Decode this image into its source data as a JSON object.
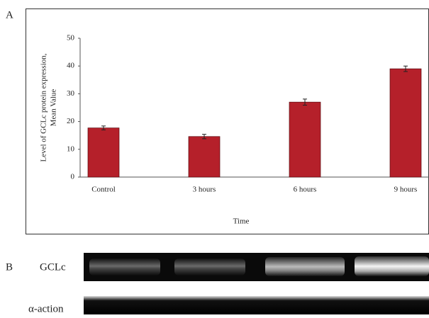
{
  "chart_data": {
    "type": "bar",
    "panel_label": "A",
    "ylabel": [
      "Level of GCLc protein expression,",
      "Mean Value"
    ],
    "xlabel": "Time",
    "categories": [
      "Control",
      "3 hours",
      "6 hours",
      "9 hours"
    ],
    "values": [
      17.7,
      14.6,
      27,
      39
    ],
    "errors": [
      0.7,
      0.8,
      1.1,
      1.0
    ],
    "color": "#b5202a",
    "ylim": [
      0,
      50
    ],
    "yticks": [
      0,
      10,
      20,
      30,
      40,
      50
    ]
  },
  "panel_b": {
    "label": "B",
    "rows": [
      "GCLc",
      "α-action"
    ]
  }
}
